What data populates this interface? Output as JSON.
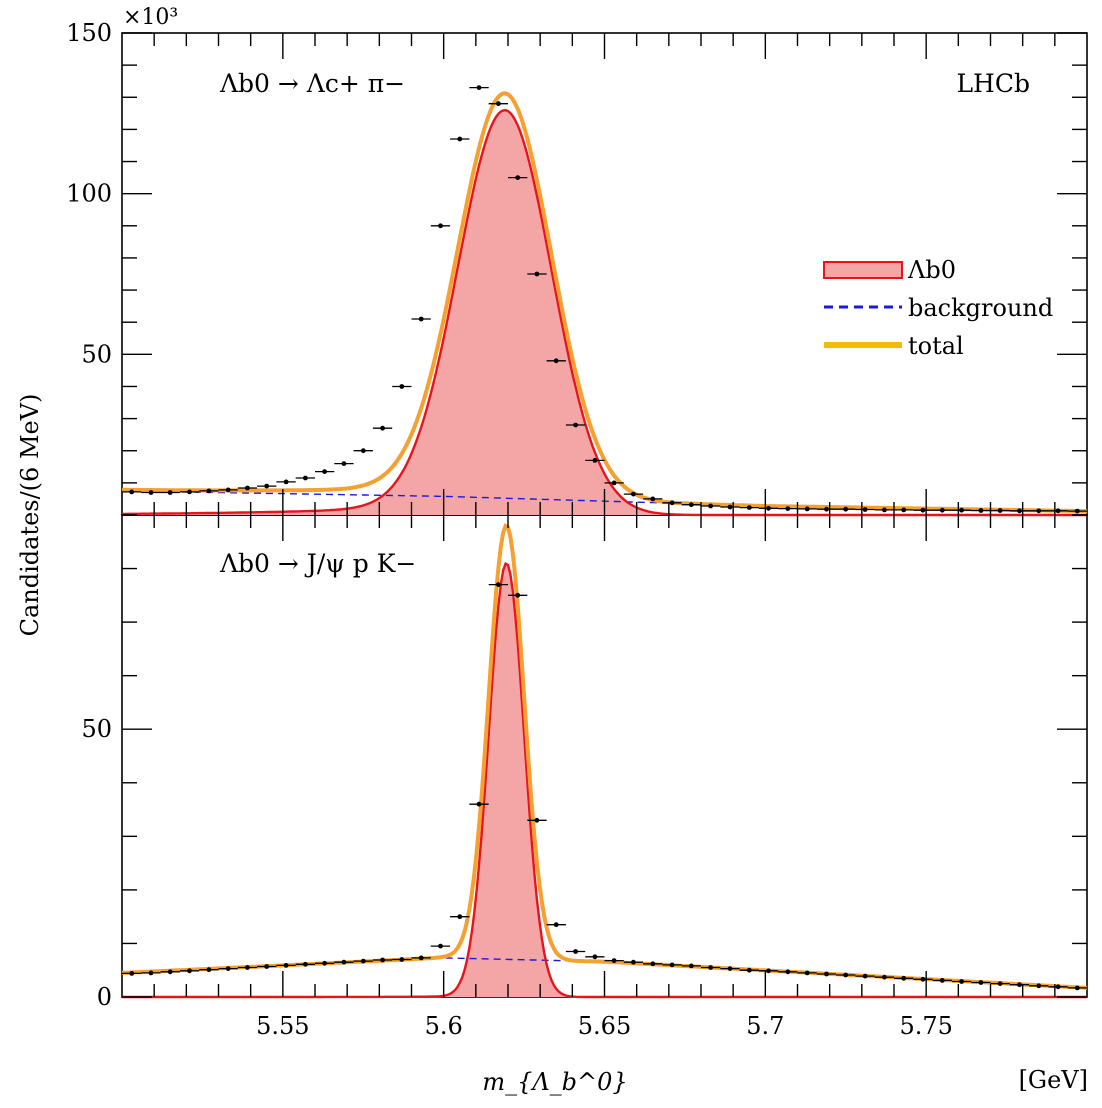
{
  "chart_data": {
    "type": "line",
    "ylabel": "Candidates/(6 MeV)",
    "xlabel": "m_{Λ_b^0}",
    "xunit": "[GeV]",
    "y_scale_label": "×10³",
    "experiment": "LHCb",
    "xlim": [
      5.5,
      5.8
    ],
    "xticks": [
      5.55,
      5.6,
      5.65,
      5.7,
      5.75
    ],
    "xtick_labels": [
      "5.55",
      "5.6",
      "5.65",
      "5.7",
      "5.75"
    ],
    "legend": {
      "placement": "right",
      "entries": [
        "Λb0",
        "background",
        "total"
      ]
    },
    "colors": {
      "signal_fill": "#f4a6a6",
      "signal_line": "#e8141c",
      "background": "#1a1adb",
      "total": "#f5a030",
      "legend_total": "#f7b90a",
      "data": "#000000"
    },
    "panels": [
      {
        "decay": "Λb0 → Λc+ π−",
        "ylim": [
          0,
          150
        ],
        "yticks": [
          50,
          100,
          150
        ],
        "ytick_labels": [
          "50",
          "100",
          "150"
        ],
        "signal": {
          "mean": 5.619,
          "sigma": 0.0145,
          "peak": 126,
          "tail": 7.5
        },
        "background": {
          "x": [
            5.5,
            5.6,
            5.7,
            5.8
          ],
          "y": [
            7.5,
            5.8,
            2.8,
            1.2
          ]
        },
        "data_x": [
          5.503,
          5.509,
          5.515,
          5.521,
          5.527,
          5.533,
          5.539,
          5.545,
          5.551,
          5.557,
          5.563,
          5.569,
          5.575,
          5.581,
          5.587,
          5.593,
          5.599,
          5.605,
          5.611,
          5.617,
          5.623,
          5.629,
          5.635,
          5.641,
          5.647,
          5.653,
          5.659,
          5.665,
          5.671,
          5.677,
          5.683,
          5.689,
          5.695,
          5.701,
          5.707,
          5.713,
          5.719,
          5.725,
          5.731,
          5.737,
          5.743,
          5.749,
          5.755,
          5.761,
          5.767,
          5.773,
          5.779,
          5.785,
          5.791,
          5.797
        ],
        "data_y": [
          7.2,
          7.0,
          7.0,
          7.2,
          7.5,
          7.8,
          8.4,
          9.0,
          10.3,
          11.5,
          13.5,
          16.0,
          20.0,
          27.0,
          40.0,
          61.0,
          90.0,
          117.0,
          133.0,
          128.0,
          105.0,
          75.0,
          48.0,
          28.0,
          17.0,
          10.0,
          6.5,
          5.0,
          3.8,
          3.2,
          2.8,
          2.5,
          2.3,
          2.1,
          2.0,
          1.9,
          1.8,
          1.8,
          1.7,
          1.6,
          1.6,
          1.5,
          1.5,
          1.5,
          1.4,
          1.4,
          1.3,
          1.3,
          1.3,
          1.2
        ]
      },
      {
        "decay": "Λb0 → J/ψ p K−",
        "ylim": [
          0,
          90
        ],
        "yticks": [
          0,
          50
        ],
        "ytick_labels": [
          "0",
          "50"
        ],
        "signal": {
          "mean": 5.6195,
          "sigma": 0.0055,
          "peak": 81,
          "tail": 0.4
        },
        "background": {
          "x": [
            5.5,
            5.6,
            5.65,
            5.8
          ],
          "y": [
            4.5,
            7.3,
            6.6,
            1.7
          ]
        },
        "data_x": [
          5.503,
          5.509,
          5.515,
          5.521,
          5.527,
          5.533,
          5.539,
          5.545,
          5.551,
          5.557,
          5.563,
          5.569,
          5.575,
          5.581,
          5.587,
          5.593,
          5.599,
          5.605,
          5.611,
          5.617,
          5.623,
          5.629,
          5.635,
          5.641,
          5.647,
          5.653,
          5.659,
          5.665,
          5.671,
          5.677,
          5.683,
          5.689,
          5.695,
          5.701,
          5.707,
          5.713,
          5.719,
          5.725,
          5.731,
          5.737,
          5.743,
          5.749,
          5.755,
          5.761,
          5.767,
          5.773,
          5.779,
          5.785,
          5.791,
          5.797
        ],
        "data_y": [
          4.4,
          4.5,
          4.7,
          4.9,
          5.1,
          5.3,
          5.5,
          5.7,
          5.9,
          6.1,
          6.3,
          6.5,
          6.7,
          6.9,
          7.0,
          7.3,
          9.5,
          15.0,
          36.0,
          77.0,
          75.0,
          33.0,
          13.5,
          8.5,
          7.5,
          6.8,
          6.5,
          6.2,
          6.0,
          5.8,
          5.5,
          5.3,
          5.0,
          4.9,
          4.7,
          4.5,
          4.3,
          4.1,
          3.9,
          3.7,
          3.5,
          3.3,
          3.1,
          2.9,
          2.7,
          2.5,
          2.3,
          2.1,
          1.9,
          1.7
        ]
      }
    ]
  }
}
